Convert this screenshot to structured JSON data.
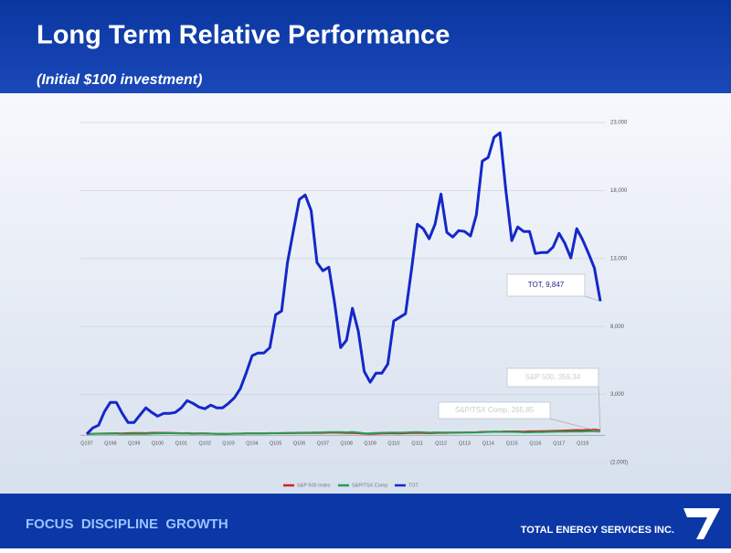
{
  "header": {
    "title": "Long Term Relative Performance",
    "subtitle": "(Initial $100 investment)"
  },
  "footer": {
    "tagline": "FOCUS  DISCIPLINE  GROWTH",
    "company": "TOTAL ENERGY SERVICES INC."
  },
  "chart_data": {
    "type": "line",
    "categories": [
      "Q197",
      null,
      null,
      null,
      "Q198",
      null,
      null,
      null,
      "Q199",
      null,
      null,
      null,
      "Q100",
      null,
      null,
      null,
      "Q101",
      null,
      null,
      null,
      "Q102",
      null,
      null,
      null,
      "Q103",
      null,
      null,
      null,
      "Q104",
      null,
      null,
      null,
      "Q105",
      null,
      null,
      null,
      "Q106",
      null,
      null,
      null,
      "Q107",
      null,
      null,
      null,
      "Q108",
      null,
      null,
      null,
      "Q109",
      null,
      null,
      null,
      "Q110",
      null,
      null,
      null,
      "Q111",
      null,
      null,
      null,
      "Q112",
      null,
      null,
      null,
      "Q113",
      null,
      null,
      null,
      "Q114",
      null,
      null,
      null,
      "Q115",
      null,
      null,
      null,
      "Q116",
      null,
      null,
      null,
      "Q117",
      null,
      null,
      null,
      "Q118",
      null,
      null,
      null
    ],
    "series": [
      {
        "name": "S&P 500 Index",
        "color": "#d42020",
        "values": [
          100,
          108,
          125,
          128,
          145,
          150,
          134,
          160,
          168,
          170,
          160,
          182,
          186,
          182,
          180,
          165,
          146,
          154,
          132,
          144,
          144,
          126,
          104,
          111,
          106,
          122,
          124,
          141,
          143,
          145,
          142,
          155,
          151,
          153,
          157,
          160,
          167,
          164,
          170,
          178,
          179,
          189,
          192,
          186,
          169,
          165,
          151,
          116,
          103,
          119,
          137,
          145,
          153,
          134,
          149,
          164,
          173,
          173,
          149,
          165,
          185,
          180,
          191,
          190,
          210,
          216,
          227,
          251,
          255,
          268,
          271,
          285,
          288,
          286,
          267,
          289,
          292,
          298,
          309,
          323,
          341,
          350,
          365,
          384,
          381,
          396,
          426,
          359.34
        ]
      },
      {
        "name": "S&P/TSX Comp",
        "color": "#1fa055",
        "values": [
          100,
          110,
          120,
          115,
          125,
          122,
          100,
          106,
          108,
          114,
          112,
          132,
          142,
          152,
          158,
          141,
          129,
          131,
          112,
          122,
          124,
          116,
          105,
          108,
          105,
          114,
          118,
          128,
          133,
          133,
          139,
          147,
          154,
          161,
          178,
          185,
          193,
          193,
          196,
          213,
          219,
          229,
          230,
          230,
          220,
          246,
          201,
          151,
          146,
          163,
          186,
          194,
          201,
          191,
          202,
          225,
          231,
          221,
          190,
          208,
          213,
          197,
          208,
          212,
          207,
          201,
          210,
          225,
          243,
          258,
          253,
          254,
          249,
          242,
          220,
          220,
          230,
          237,
          250,
          261,
          270,
          271,
          278,
          286,
          278,
          299,
          298,
          265.85
        ]
      },
      {
        "name": "TOT",
        "color": "#1428c8",
        "values": [
          100,
          540,
          740,
          1750,
          2420,
          2420,
          1610,
          940,
          940,
          1480,
          2020,
          1680,
          1410,
          1610,
          1610,
          1680,
          2020,
          2550,
          2350,
          2080,
          1950,
          2220,
          2020,
          2020,
          2350,
          2760,
          3430,
          4570,
          5850,
          6050,
          6050,
          6450,
          8870,
          9140,
          12700,
          15050,
          17340,
          17670,
          16530,
          12700,
          12100,
          12360,
          9680,
          6450,
          6990,
          9340,
          7660,
          4700,
          3900,
          4570,
          4570,
          5240,
          8400,
          8670,
          8940,
          12160,
          15520,
          15190,
          14450,
          15520,
          17740,
          14920,
          14580,
          15050,
          14990,
          14650,
          16200,
          20160,
          20430,
          21910,
          22240,
          18010,
          14310,
          15320,
          14990,
          14990,
          13370,
          13440,
          13440,
          13840,
          14850,
          14110,
          13040,
          15190,
          14380,
          13370,
          12300,
          9847
        ]
      }
    ],
    "annotations": [
      "TOT,  9,847",
      "S&P 500, 359.34",
      "S&P/TSX Comp, 265.85"
    ],
    "ylim": [
      -2000,
      23000
    ],
    "yticks": [
      {
        "value": 23000,
        "label": "23,000"
      },
      {
        "value": 18000,
        "label": "18,000"
      },
      {
        "value": 13000,
        "label": "13,000"
      },
      {
        "value": 8000,
        "label": "8,000"
      },
      {
        "value": 3000,
        "label": "3,000"
      },
      {
        "value": -2000,
        "label": "(2,000)"
      }
    ],
    "grid": true
  }
}
